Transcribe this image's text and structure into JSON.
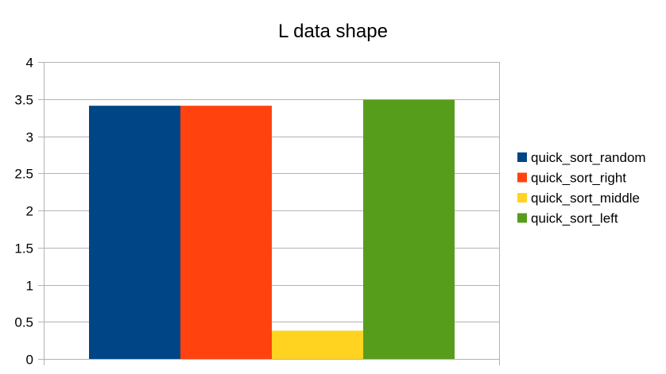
{
  "chart_data": {
    "type": "bar",
    "title": "L data shape",
    "xlabel": "",
    "ylabel": "",
    "categories": [
      ""
    ],
    "ylim": [
      0,
      4
    ],
    "yticks": [
      0,
      0.5,
      1,
      1.5,
      2,
      2.5,
      3,
      3.5,
      4
    ],
    "ytick_labels": [
      "0",
      "0.5",
      "1",
      "1.5",
      "2",
      "2.5",
      "3",
      "3.5",
      "4"
    ],
    "grid": true,
    "legend_position": "right",
    "series": [
      {
        "name": "quick_sort_random",
        "values": [
          3.41
        ],
        "color": "#004586"
      },
      {
        "name": "quick_sort_right",
        "values": [
          3.41
        ],
        "color": "#ff420e"
      },
      {
        "name": "quick_sort_middle",
        "values": [
          0.38
        ],
        "color": "#ffd320"
      },
      {
        "name": "quick_sort_left",
        "values": [
          3.49
        ],
        "color": "#579d1c"
      }
    ]
  }
}
